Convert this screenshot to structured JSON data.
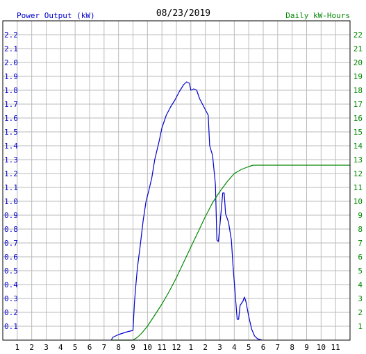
{
  "chart_data": {
    "type": "line",
    "title": "08/23/2019",
    "left_axis_label": "Power Output (kW)",
    "right_axis_label": "Daily kW-Hours",
    "x_tick_labels": [
      "1",
      "2",
      "3",
      "4",
      "5",
      "6",
      "7",
      "8",
      "9",
      "10",
      "11",
      "12",
      "1",
      "2",
      "3",
      "4",
      "5",
      "6",
      "7",
      "8",
      "9",
      "10",
      "11"
    ],
    "x_range_hours": [
      0,
      24
    ],
    "left_ylim": [
      0,
      2.3
    ],
    "left_ticks": [
      0.1,
      0.2,
      0.3,
      0.4,
      0.5,
      0.6,
      0.7,
      0.8,
      0.9,
      1.0,
      1.1,
      1.2,
      1.3,
      1.4,
      1.5,
      1.6,
      1.7,
      1.8,
      1.9,
      2.0,
      2.1,
      2.2
    ],
    "left_tick_labels": [
      "0.1",
      "0.2",
      "0.3",
      "0.4",
      "0.5",
      "0.6",
      "0.7",
      "0.8",
      "0.9",
      "1.0",
      "1.1",
      "1.2",
      "1.3",
      "1.4",
      "1.5",
      "1.6",
      "1.7",
      "1.8",
      "1.9",
      "2.0",
      "2.1",
      "2.2"
    ],
    "right_ylim": [
      0,
      23
    ],
    "right_ticks": [
      1,
      2,
      3,
      4,
      5,
      6,
      7,
      8,
      9,
      10,
      11,
      12,
      13,
      14,
      15,
      16,
      17,
      18,
      19,
      20,
      21,
      22
    ],
    "grid": true,
    "colors": {
      "power": "#0000cc",
      "energy": "#008800",
      "grid": "#bbbbbb",
      "axis": "#000000",
      "left_labels": "#0000cc",
      "right_labels": "#008800"
    },
    "series": [
      {
        "axis": "left",
        "points": [
          [
            7.5,
            0.0
          ],
          [
            7.6,
            0.02
          ],
          [
            7.8,
            0.03
          ],
          [
            8.0,
            0.04
          ],
          [
            8.3,
            0.05
          ],
          [
            8.6,
            0.06
          ],
          [
            9.0,
            0.07
          ],
          [
            9.1,
            0.27
          ],
          [
            9.2,
            0.4
          ],
          [
            9.3,
            0.52
          ],
          [
            9.5,
            0.68
          ],
          [
            9.7,
            0.86
          ],
          [
            9.9,
            1.0
          ],
          [
            10.1,
            1.08
          ],
          [
            10.3,
            1.17
          ],
          [
            10.5,
            1.3
          ],
          [
            10.8,
            1.43
          ],
          [
            11.0,
            1.53
          ],
          [
            11.3,
            1.62
          ],
          [
            11.6,
            1.68
          ],
          [
            11.9,
            1.73
          ],
          [
            12.2,
            1.79
          ],
          [
            12.5,
            1.84
          ],
          [
            12.7,
            1.86
          ],
          [
            12.9,
            1.85
          ],
          [
            13.0,
            1.8
          ],
          [
            13.2,
            1.81
          ],
          [
            13.4,
            1.8
          ],
          [
            13.6,
            1.74
          ],
          [
            13.8,
            1.7
          ],
          [
            14.0,
            1.66
          ],
          [
            14.2,
            1.62
          ],
          [
            14.3,
            1.4
          ],
          [
            14.5,
            1.33
          ],
          [
            14.7,
            1.12
          ],
          [
            14.8,
            0.72
          ],
          [
            14.9,
            0.71
          ],
          [
            15.0,
            0.82
          ],
          [
            15.2,
            1.06
          ],
          [
            15.3,
            1.06
          ],
          [
            15.4,
            0.91
          ],
          [
            15.6,
            0.85
          ],
          [
            15.8,
            0.72
          ],
          [
            15.9,
            0.55
          ],
          [
            16.0,
            0.42
          ],
          [
            16.2,
            0.15
          ],
          [
            16.3,
            0.15
          ],
          [
            16.4,
            0.25
          ],
          [
            16.6,
            0.28
          ],
          [
            16.7,
            0.31
          ],
          [
            16.8,
            0.28
          ],
          [
            17.0,
            0.17
          ],
          [
            17.2,
            0.08
          ],
          [
            17.4,
            0.03
          ],
          [
            17.6,
            0.01
          ],
          [
            17.9,
            0.0
          ]
        ]
      },
      {
        "axis": "right",
        "points": [
          [
            7.5,
            0.0
          ],
          [
            9.0,
            0.0
          ],
          [
            9.3,
            0.2
          ],
          [
            9.6,
            0.5
          ],
          [
            10.0,
            1.0
          ],
          [
            10.5,
            1.8
          ],
          [
            11.0,
            2.6
          ],
          [
            11.5,
            3.5
          ],
          [
            12.0,
            4.5
          ],
          [
            12.5,
            5.6
          ],
          [
            13.0,
            6.7
          ],
          [
            13.5,
            7.8
          ],
          [
            14.0,
            8.9
          ],
          [
            14.5,
            9.9
          ],
          [
            15.0,
            10.7
          ],
          [
            15.5,
            11.4
          ],
          [
            16.0,
            12.0
          ],
          [
            16.5,
            12.3
          ],
          [
            17.0,
            12.5
          ],
          [
            17.3,
            12.6
          ],
          [
            24.0,
            12.6
          ]
        ]
      }
    ]
  }
}
